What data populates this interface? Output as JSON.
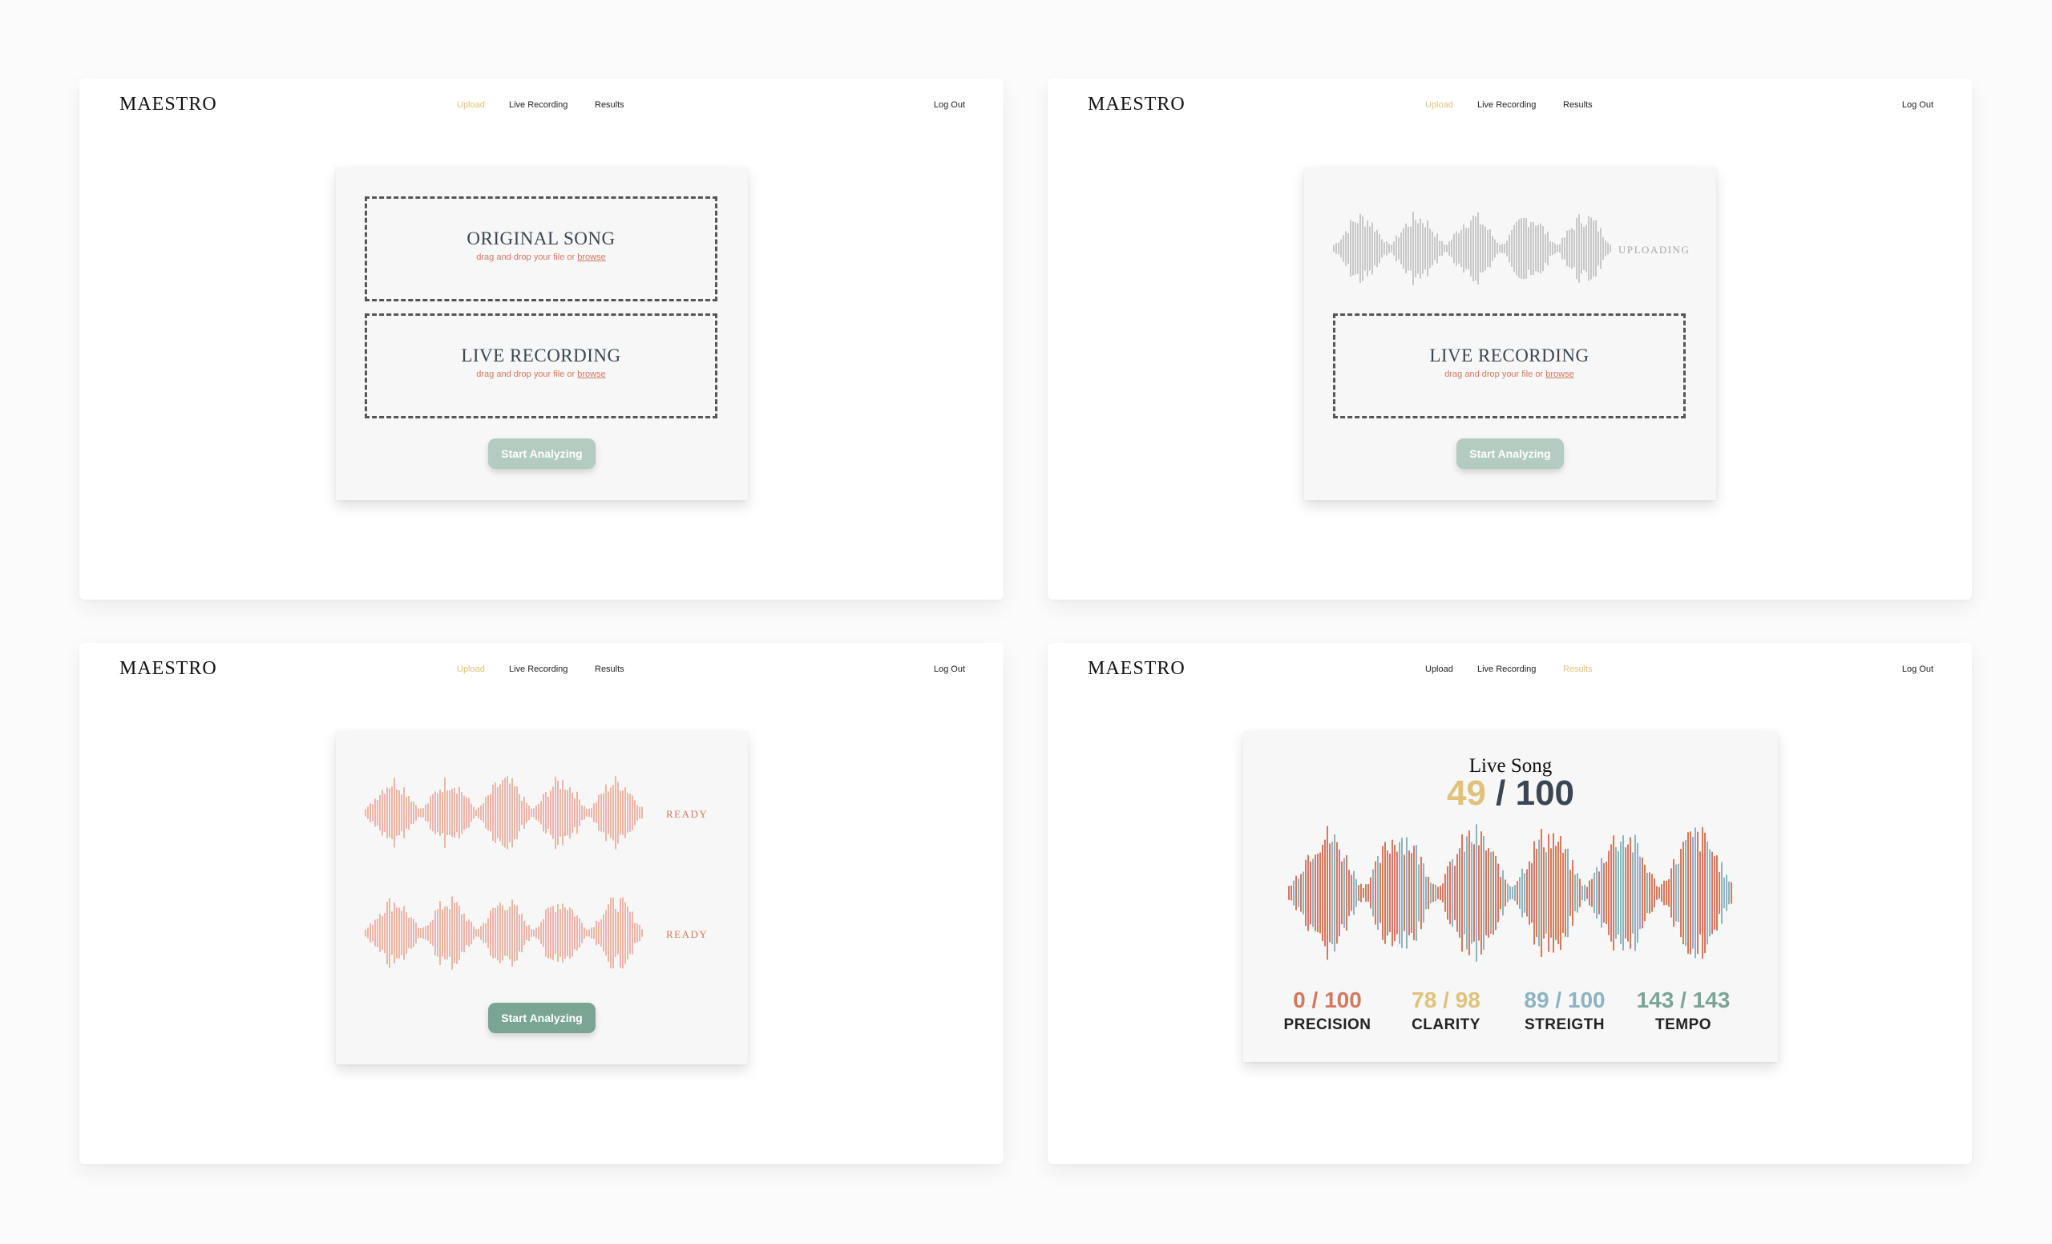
{
  "colors": {
    "accent_yellow": "#e0c27a",
    "coral": "#d4785f",
    "wave_coral": "#e9a593",
    "wave_gray": "#bdbdbd",
    "blue": "#8cb4c0",
    "green": "#7aa595",
    "button_disabled": "#b3cbc1",
    "dark": "#3b4652"
  },
  "nav": {
    "logo": "MAESTRO",
    "upload": "Upload",
    "live_recording": "Live Recording",
    "results": "Results",
    "logout": "Log Out"
  },
  "upload": {
    "original_title": "ORIGINAL SONG",
    "live_title": "LIVE RECORDING",
    "drop_hint": "drag and drop your file or",
    "browse": "browse",
    "start_button": "Start Analyzing",
    "uploading_label": "UPLOADING",
    "ready_label": "READY"
  },
  "results": {
    "title": "Live Song",
    "score": "49",
    "score_total": "/ 100",
    "metrics": [
      {
        "value": "0 / 100",
        "label": "PRECISION",
        "color": "#d4785f"
      },
      {
        "value": "78 / 98",
        "label": "CLARITY",
        "color": "#e0c27a"
      },
      {
        "value": "89 / 100",
        "label": "STREIGTH",
        "color": "#8cb4c0"
      },
      {
        "value": "143 / 143",
        "label": "TEMPO",
        "color": "#7aa595"
      }
    ]
  }
}
